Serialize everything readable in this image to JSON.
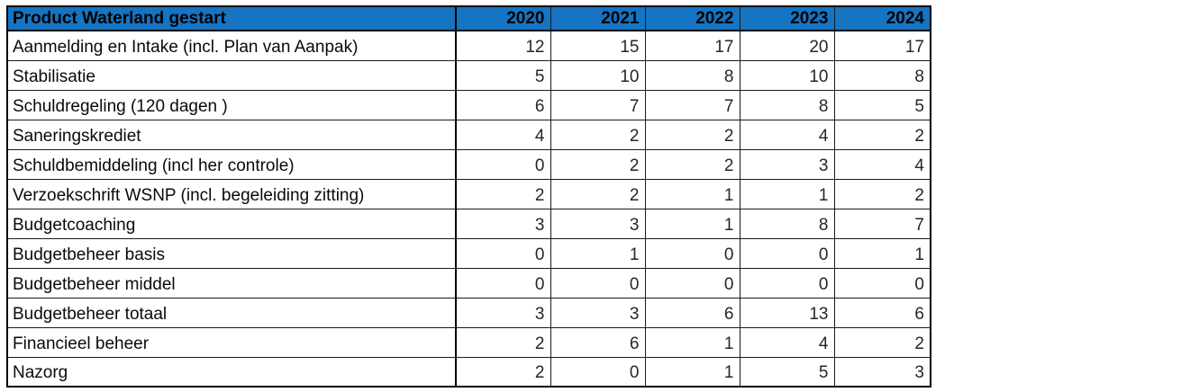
{
  "colors": {
    "header_bg": "#1674C2",
    "header_text": "#000000",
    "border": "#000000",
    "cell_text": "#262626",
    "background": "#ffffff"
  },
  "table": {
    "header": {
      "label": "Product Waterland gestart",
      "years": [
        "2020",
        "2021",
        "2022",
        "2023",
        "2024"
      ]
    },
    "rows": [
      {
        "label": "Aanmelding en Intake (incl. Plan van Aanpak)",
        "values": [
          12,
          15,
          17,
          20,
          17
        ]
      },
      {
        "label": "Stabilisatie",
        "values": [
          5,
          10,
          8,
          10,
          8
        ]
      },
      {
        "label": "Schuldregeling (120 dagen )",
        "values": [
          6,
          7,
          7,
          8,
          5
        ]
      },
      {
        "label": "Saneringskrediet",
        "values": [
          4,
          2,
          2,
          4,
          2
        ]
      },
      {
        "label": "Schuldbemiddeling (incl her controle)",
        "values": [
          0,
          2,
          2,
          3,
          4
        ]
      },
      {
        "label": "Verzoekschrift WSNP (incl. begeleiding zitting)",
        "values": [
          2,
          2,
          1,
          1,
          2
        ]
      },
      {
        "label": "Budgetcoaching",
        "values": [
          3,
          3,
          1,
          8,
          7
        ]
      },
      {
        "label": "Budgetbeheer basis",
        "values": [
          0,
          1,
          0,
          0,
          1
        ]
      },
      {
        "label": "Budgetbeheer middel",
        "values": [
          0,
          0,
          0,
          0,
          0
        ]
      },
      {
        "label": "Budgetbeheer totaal",
        "values": [
          3,
          3,
          6,
          13,
          6
        ]
      },
      {
        "label": "Financieel beheer",
        "values": [
          2,
          6,
          1,
          4,
          2
        ]
      },
      {
        "label": "Nazorg",
        "values": [
          2,
          0,
          1,
          5,
          3
        ]
      }
    ]
  },
  "chart_data": {
    "type": "table",
    "title": "Product Waterland gestart",
    "categories": [
      "2020",
      "2021",
      "2022",
      "2023",
      "2024"
    ],
    "series": [
      {
        "name": "Aanmelding en Intake (incl. Plan van Aanpak)",
        "values": [
          12,
          15,
          17,
          20,
          17
        ]
      },
      {
        "name": "Stabilisatie",
        "values": [
          5,
          10,
          8,
          10,
          8
        ]
      },
      {
        "name": "Schuldregeling (120 dagen )",
        "values": [
          6,
          7,
          7,
          8,
          5
        ]
      },
      {
        "name": "Saneringskrediet",
        "values": [
          4,
          2,
          2,
          4,
          2
        ]
      },
      {
        "name": "Schuldbemiddeling (incl her controle)",
        "values": [
          0,
          2,
          2,
          3,
          4
        ]
      },
      {
        "name": "Verzoekschrift WSNP (incl. begeleiding zitting)",
        "values": [
          2,
          2,
          1,
          1,
          2
        ]
      },
      {
        "name": "Budgetcoaching",
        "values": [
          3,
          3,
          1,
          8,
          7
        ]
      },
      {
        "name": "Budgetbeheer basis",
        "values": [
          0,
          1,
          0,
          0,
          1
        ]
      },
      {
        "name": "Budgetbeheer middel",
        "values": [
          0,
          0,
          0,
          0,
          0
        ]
      },
      {
        "name": "Budgetbeheer totaal",
        "values": [
          3,
          3,
          6,
          13,
          6
        ]
      },
      {
        "name": "Financieel beheer",
        "values": [
          2,
          6,
          1,
          4,
          2
        ]
      },
      {
        "name": "Nazorg",
        "values": [
          2,
          0,
          1,
          5,
          3
        ]
      }
    ],
    "layout": {
      "header_row_highlighted": true,
      "values_alignment": "right",
      "grid": "all-borders"
    }
  }
}
